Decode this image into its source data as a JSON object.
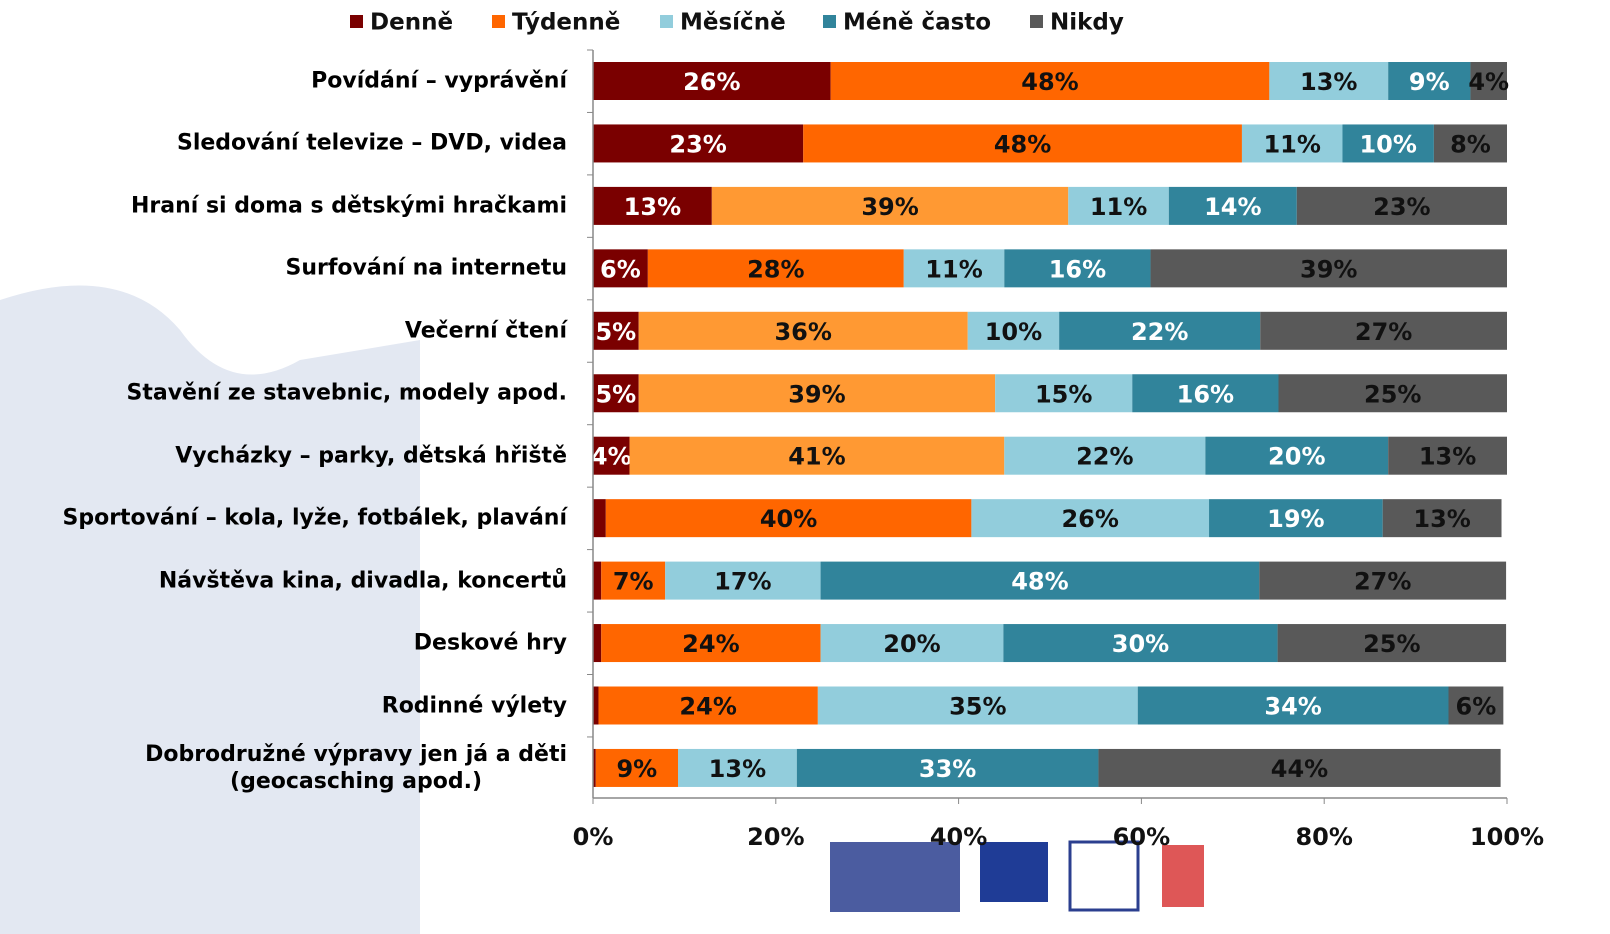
{
  "chart_data": {
    "type": "stacked-bar-horizontal",
    "categories": [
      "Povídání – vyprávění",
      "Sledování televize – DVD, videa",
      "Hraní si doma s dětskými hračkami",
      "Surfování na internetu",
      "Večerní čtení",
      "Stavění ze stavebnic, modely apod.",
      "Vycházky – parky, dětská hřiště",
      "Sportování – kola, lyže, fotbálek, plavání",
      "Návštěva kina, divadla, koncertů",
      "Deskové hry",
      "Rodinné výlety",
      "Dobrodružné výpravy jen já a děti\n(geocasching apod.)"
    ],
    "series": [
      {
        "name": "Denně",
        "color": "#7a0000",
        "values": [
          26,
          23,
          13,
          6,
          5,
          5,
          4,
          1.4,
          0.9,
          0.9,
          0.6,
          0.3
        ],
        "value_labels": [
          "26%",
          "23%",
          "13%",
          "6%",
          "5%",
          "5%",
          "4%",
          null,
          null,
          null,
          null,
          null
        ]
      },
      {
        "name": "Týdenně",
        "color": "#ff6600",
        "colors": [
          "#ff6600",
          "#ff6600",
          "#ff9933",
          "#ff6600",
          "#ff9933",
          "#ff9933",
          "#ff9933",
          "#ff6600",
          "#ff6600",
          "#ff6600",
          "#ff6600",
          "#ff6600"
        ],
        "values": [
          48,
          48,
          39,
          28,
          36,
          39,
          41,
          40,
          7,
          24,
          24,
          9
        ],
        "value_labels": [
          "48%",
          "48%",
          "39%",
          "28%",
          "36%",
          "39%",
          "41%",
          "40%",
          "7%",
          "24%",
          "24%",
          "9%"
        ]
      },
      {
        "name": "Měsíčně",
        "color": "#92cddc",
        "values": [
          13,
          11,
          11,
          11,
          10,
          15,
          22,
          26,
          17,
          20,
          35,
          13
        ],
        "value_labels": [
          "13%",
          "11%",
          "11%",
          "11%",
          "10%",
          "15%",
          "22%",
          "26%",
          "17%",
          "20%",
          "35%",
          "13%"
        ]
      },
      {
        "name": "Méně často",
        "color": "#31849b",
        "values": [
          9,
          10,
          14,
          16,
          22,
          16,
          20,
          19,
          48,
          30,
          34,
          33
        ],
        "value_labels": [
          "9%",
          "10%",
          "14%",
          "16%",
          "22%",
          "16%",
          "20%",
          "19%",
          "48%",
          "30%",
          "34%",
          "33%"
        ]
      },
      {
        "name": "Nikdy",
        "color": "#595959",
        "values": [
          4,
          8,
          23,
          39,
          27,
          25,
          13,
          13,
          27,
          25,
          6,
          44
        ],
        "value_labels": [
          "4%",
          "8%",
          "23%",
          "39%",
          "27%",
          "25%",
          "13%",
          "13%",
          "27%",
          "25%",
          "6%",
          "44%"
        ]
      }
    ],
    "xlim": [
      0,
      100
    ],
    "xticks": [
      {
        "value": 0,
        "label": "0%"
      },
      {
        "value": 20,
        "label": "20%"
      },
      {
        "value": 40,
        "label": "40%"
      },
      {
        "value": 60,
        "label": "60%"
      },
      {
        "value": 80,
        "label": "80%"
      },
      {
        "value": 100,
        "label": "100%"
      }
    ],
    "legend": "top"
  }
}
